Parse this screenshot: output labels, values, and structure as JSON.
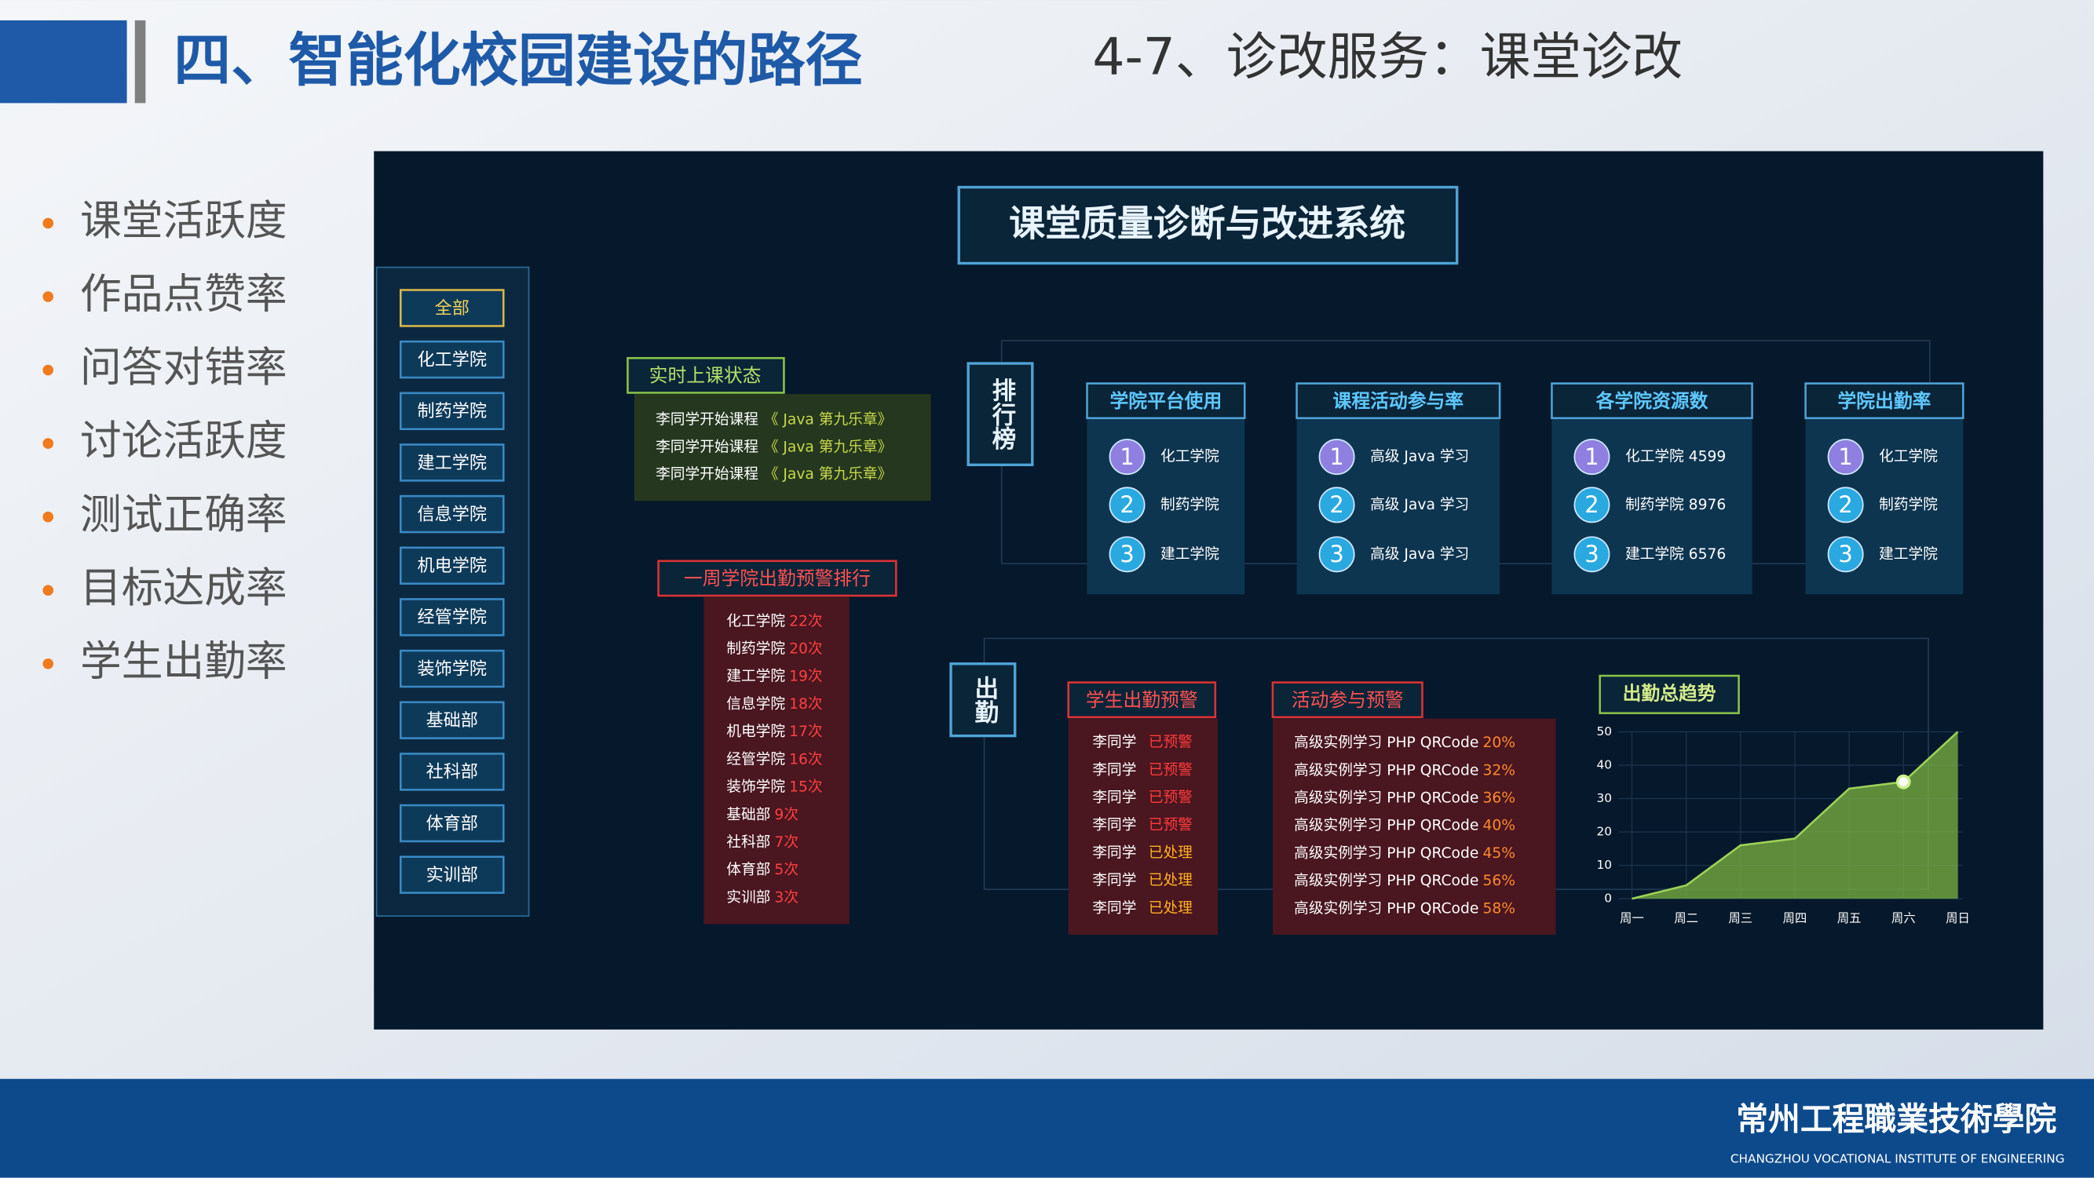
{
  "header": {
    "section_title": "四、智能化校园建设的路径",
    "subtitle": "4-7、诊改服务：课堂诊改"
  },
  "bullets": [
    "课堂活跃度",
    "作品点赞率",
    "问答对错率",
    "讨论活跃度",
    "测试正确率",
    "目标达成率",
    "学生出勤率"
  ],
  "dashboard": {
    "title": "课堂质量诊断与改进系统",
    "sidebar": [
      "全部",
      "化工学院",
      "制药学院",
      "建工学院",
      "信息学院",
      "机电学院",
      "经管学院",
      "装饰学院",
      "基础部",
      "社科部",
      "体育部",
      "实训部"
    ],
    "live_status": {
      "title": "实时上课状态",
      "rows": [
        {
          "text": "李同学开始课程",
          "course": "《 Java 第九乐章》"
        },
        {
          "text": "李同学开始课程",
          "course": "《 Java 第九乐章》"
        },
        {
          "text": "李同学开始课程",
          "course": "《 Java 第九乐章》"
        }
      ]
    },
    "weekly_warning": {
      "title": "一周学院出勤预警排行",
      "rows": [
        {
          "name": "化工学院",
          "count": "22次"
        },
        {
          "name": "制药学院",
          "count": "20次"
        },
        {
          "name": "建工学院",
          "count": "19次"
        },
        {
          "name": "信息学院",
          "count": "18次"
        },
        {
          "name": "机电学院",
          "count": "17次"
        },
        {
          "name": "经管学院",
          "count": "16次"
        },
        {
          "name": "装饰学院",
          "count": "15次"
        },
        {
          "name": "基础部",
          "count": "9次"
        },
        {
          "name": "社科部",
          "count": "7次"
        },
        {
          "name": "体育部",
          "count": "5次"
        },
        {
          "name": "实训部",
          "count": "3次"
        }
      ]
    },
    "ranking_label": "排行榜",
    "rankings": [
      {
        "title": "学院平台使用",
        "items": [
          {
            "rank": "1",
            "label": "化工学院"
          },
          {
            "rank": "2",
            "label": "制药学院"
          },
          {
            "rank": "3",
            "label": "建工学院"
          }
        ]
      },
      {
        "title": "课程活动参与率",
        "items": [
          {
            "rank": "1",
            "label": "高级 Java 学习"
          },
          {
            "rank": "2",
            "label": "高级 Java 学习"
          },
          {
            "rank": "3",
            "label": "高级 Java 学习"
          }
        ]
      },
      {
        "title": "各学院资源数",
        "items": [
          {
            "rank": "1",
            "label": "化工学院 4599"
          },
          {
            "rank": "2",
            "label": "制药学院 8976"
          },
          {
            "rank": "3",
            "label": "建工学院 6576"
          }
        ]
      },
      {
        "title": "学院出勤率",
        "items": [
          {
            "rank": "1",
            "label": "化工学院"
          },
          {
            "rank": "2",
            "label": "制药学院"
          },
          {
            "rank": "3",
            "label": "建工学院"
          }
        ]
      }
    ],
    "attendance_label": "出勤",
    "student_warning": {
      "title": "学生出勤预警",
      "rows": [
        {
          "name": "李同学",
          "status": "已预警",
          "color": "#ff3b3b"
        },
        {
          "name": "李同学",
          "status": "已预警",
          "color": "#ff3b3b"
        },
        {
          "name": "李同学",
          "status": "已预警",
          "color": "#ff3b3b"
        },
        {
          "name": "李同学",
          "status": "已预警",
          "color": "#ff3b3b"
        },
        {
          "name": "李同学",
          "status": "已处理",
          "color": "#ffb020"
        },
        {
          "name": "李同学",
          "status": "已处理",
          "color": "#ffb020"
        },
        {
          "name": "李同学",
          "status": "已处理",
          "color": "#ffb020"
        }
      ]
    },
    "activity_warning": {
      "title": "活动参与预警",
      "rows": [
        {
          "text": "高级实例学习 PHP QRCode",
          "pct": "20%"
        },
        {
          "text": "高级实例学习 PHP QRCode",
          "pct": "32%"
        },
        {
          "text": "高级实例学习 PHP QRCode",
          "pct": "36%"
        },
        {
          "text": "高级实例学习 PHP QRCode",
          "pct": "40%"
        },
        {
          "text": "高级实例学习 PHP QRCode",
          "pct": "45%"
        },
        {
          "text": "高级实例学习 PHP QRCode",
          "pct": "56%"
        },
        {
          "text": "高级实例学习 PHP QRCode",
          "pct": "58%"
        }
      ]
    }
  },
  "chart_data": {
    "type": "area",
    "title": "出勤总趋势",
    "categories": [
      "周一",
      "周二",
      "周三",
      "周四",
      "周五",
      "周六",
      "周日"
    ],
    "values": [
      0,
      4,
      16,
      18,
      33,
      35,
      50
    ],
    "ylim": [
      0,
      50
    ],
    "yticks": [
      0,
      10,
      20,
      30,
      40,
      50
    ],
    "grid": true,
    "color": "#7cb342"
  },
  "footer": {
    "school_cn": "常州工程職業技術學院",
    "school_en": "CHANGZHOU VOCATIONAL INSTITUTE OF ENGINEERING"
  }
}
